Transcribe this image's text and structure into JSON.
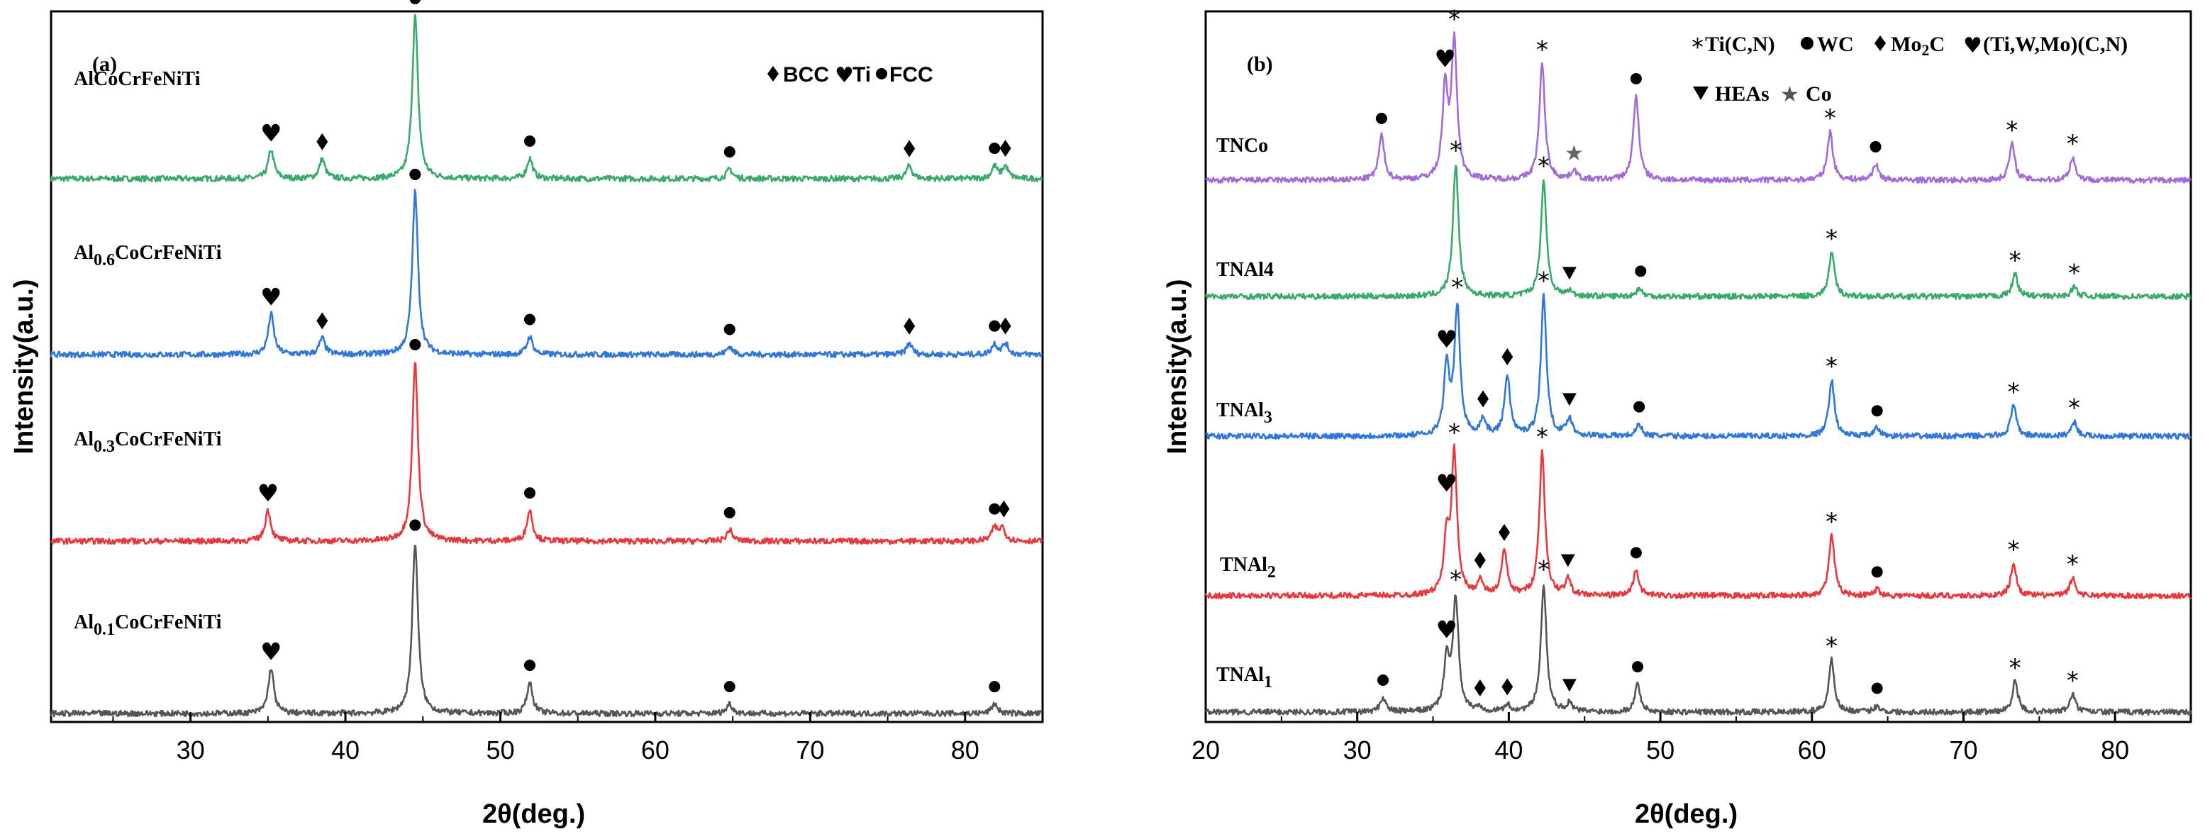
{
  "chart_data": [
    {
      "type": "line",
      "panel_label": "(a)",
      "xlabel": "2θ(deg.)",
      "ylabel": "Intensity(a.u.)",
      "xlim": [
        21,
        85
      ],
      "xticks": [
        30,
        40,
        50,
        60,
        70,
        80
      ],
      "legend": {
        "placement": "top-right",
        "entries": [
          {
            "marker": "diamond",
            "label": "BCC"
          },
          {
            "marker": "heart",
            "label": "Ti"
          },
          {
            "marker": "dot",
            "label": "FCC"
          }
        ]
      },
      "series": [
        {
          "name": "AlCoCrFeNiTi",
          "label_main": "AlCoCrFeNiTi",
          "label_sub": "",
          "label_rest": "",
          "color": "#3aaa6a",
          "peaks": [
            [
              35.2,
              0.35
            ],
            [
              38.5,
              0.24
            ],
            [
              44.5,
              2.0
            ],
            [
              51.9,
              0.25
            ],
            [
              64.8,
              0.12
            ],
            [
              76.4,
              0.16
            ],
            [
              81.9,
              0.15
            ],
            [
              82.6,
              0.15
            ]
          ],
          "markers": [
            {
              "x": 35.2,
              "type": "heart"
            },
            {
              "x": 38.5,
              "type": "diamond"
            },
            {
              "x": 44.5,
              "type": "dot"
            },
            {
              "x": 51.9,
              "type": "dot"
            },
            {
              "x": 64.8,
              "type": "dot"
            },
            {
              "x": 76.4,
              "type": "diamond"
            },
            {
              "x": 81.9,
              "type": "dot"
            },
            {
              "x": 82.6,
              "type": "diamond"
            }
          ]
        },
        {
          "name": "Al0.6CoCrFeNiTi",
          "label_main": "Al",
          "label_sub": "0.6",
          "label_rest": "CoCrFeNiTi",
          "color": "#2f78d8",
          "peaks": [
            [
              35.2,
              0.5
            ],
            [
              38.5,
              0.2
            ],
            [
              44.5,
              2.0
            ],
            [
              51.9,
              0.22
            ],
            [
              64.8,
              0.1
            ],
            [
              76.4,
              0.14
            ],
            [
              81.9,
              0.13
            ],
            [
              82.6,
              0.13
            ]
          ],
          "markers": [
            {
              "x": 35.2,
              "type": "heart"
            },
            {
              "x": 38.5,
              "type": "diamond"
            },
            {
              "x": 44.5,
              "type": "dot"
            },
            {
              "x": 51.9,
              "type": "dot"
            },
            {
              "x": 64.8,
              "type": "dot"
            },
            {
              "x": 76.4,
              "type": "diamond"
            },
            {
              "x": 81.9,
              "type": "dot"
            },
            {
              "x": 82.6,
              "type": "diamond"
            }
          ]
        },
        {
          "name": "Al0.3CoCrFeNiTi",
          "label_main": "Al",
          "label_sub": "0.3",
          "label_rest": "CoCrFeNiTi",
          "color": "#e8383d",
          "peaks": [
            [
              35.0,
              0.38
            ],
            [
              44.5,
              2.2
            ],
            [
              51.9,
              0.38
            ],
            [
              64.8,
              0.14
            ],
            [
              81.9,
              0.16
            ],
            [
              82.4,
              0.16
            ]
          ],
          "markers": [
            {
              "x": 35.0,
              "type": "heart"
            },
            {
              "x": 44.5,
              "type": "dot"
            },
            {
              "x": 51.9,
              "type": "dot"
            },
            {
              "x": 64.8,
              "type": "dot"
            },
            {
              "x": 81.9,
              "type": "dot"
            },
            {
              "x": 82.5,
              "type": "diamond"
            }
          ]
        },
        {
          "name": "Al0.1CoCrFeNiTi",
          "label_main": "Al",
          "label_sub": "0.1",
          "label_rest": "CoCrFeNiTi",
          "color": "#555555",
          "peaks": [
            [
              35.2,
              0.55
            ],
            [
              44.5,
              2.1
            ],
            [
              51.9,
              0.38
            ],
            [
              64.8,
              0.12
            ],
            [
              81.9,
              0.12
            ]
          ],
          "markers": [
            {
              "x": 35.2,
              "type": "heart"
            },
            {
              "x": 44.5,
              "type": "dot"
            },
            {
              "x": 51.9,
              "type": "dot"
            },
            {
              "x": 64.8,
              "type": "dot"
            },
            {
              "x": 81.9,
              "type": "dot"
            }
          ]
        }
      ]
    },
    {
      "type": "line",
      "panel_label": "(b)",
      "xlabel": "2θ(deg.)",
      "ylabel": "Intensity(a.u.)",
      "xlim": [
        20,
        85
      ],
      "xticks": [
        20,
        30,
        40,
        50,
        60,
        70,
        80
      ],
      "legend": {
        "placement": "top-right",
        "row1": [
          {
            "marker": "asterisk",
            "label": "Ti(C,N)"
          },
          {
            "marker": "dot",
            "label": "WC"
          },
          {
            "marker": "diamond",
            "label": "Mo2C",
            "label_main": "Mo",
            "label_sub": "2",
            "label_rest": "C"
          },
          {
            "marker": "heart",
            "label": "(Ti,W,Mo)(C,N)"
          }
        ],
        "row2": [
          {
            "marker": "triangle",
            "label": "HEAs"
          },
          {
            "marker": "grey-star",
            "label": "Co"
          }
        ]
      },
      "series": [
        {
          "name": "TNCo",
          "label_main": "TNCo",
          "label_sub": "",
          "label_rest": "",
          "color": "#a36bd8",
          "peaks": [
            [
              31.6,
              0.55
            ],
            [
              35.8,
              1.1
            ],
            [
              36.4,
              1.7
            ],
            [
              42.2,
              1.45
            ],
            [
              44.3,
              0.12
            ],
            [
              48.4,
              1.05
            ],
            [
              61.2,
              0.6
            ],
            [
              64.2,
              0.2
            ],
            [
              73.2,
              0.45
            ],
            [
              77.2,
              0.28
            ]
          ],
          "markers": [
            {
              "x": 31.6,
              "type": "dot"
            },
            {
              "x": 35.8,
              "type": "heart"
            },
            {
              "x": 36.4,
              "type": "asterisk"
            },
            {
              "x": 42.2,
              "type": "asterisk"
            },
            {
              "x": 44.3,
              "type": "grey-star"
            },
            {
              "x": 48.4,
              "type": "dot"
            },
            {
              "x": 61.2,
              "type": "asterisk"
            },
            {
              "x": 64.2,
              "type": "dot"
            },
            {
              "x": 73.2,
              "type": "asterisk"
            },
            {
              "x": 77.2,
              "type": "asterisk"
            }
          ]
        },
        {
          "name": "TNAl4",
          "label_main": "TNAl4",
          "label_sub": "",
          "label_rest": "",
          "color": "#3aaa6a",
          "peaks": [
            [
              36.5,
              1.65
            ],
            [
              42.3,
              1.45
            ],
            [
              44.0,
              0.06
            ],
            [
              48.6,
              0.1
            ],
            [
              61.3,
              0.55
            ],
            [
              73.4,
              0.28
            ],
            [
              77.3,
              0.12
            ]
          ],
          "markers": [
            {
              "x": 36.5,
              "type": "asterisk"
            },
            {
              "x": 42.3,
              "type": "asterisk"
            },
            {
              "x": 44.0,
              "type": "triangle"
            },
            {
              "x": 48.7,
              "type": "dot"
            },
            {
              "x": 61.3,
              "type": "asterisk"
            },
            {
              "x": 73.4,
              "type": "asterisk"
            },
            {
              "x": 77.3,
              "type": "asterisk"
            }
          ]
        },
        {
          "name": "TNAl3",
          "label_main": "TNAl",
          "label_sub": "3",
          "label_rest": "",
          "color": "#2f78d8",
          "peaks": [
            [
              35.9,
              0.85
            ],
            [
              36.6,
              1.6
            ],
            [
              38.3,
              0.2
            ],
            [
              39.9,
              0.75
            ],
            [
              42.3,
              1.75
            ],
            [
              44.0,
              0.22
            ],
            [
              48.6,
              0.15
            ],
            [
              61.3,
              0.7
            ],
            [
              64.3,
              0.1
            ],
            [
              73.3,
              0.38
            ],
            [
              77.3,
              0.18
            ]
          ],
          "markers": [
            {
              "x": 35.9,
              "type": "heart"
            },
            {
              "x": 36.6,
              "type": "asterisk"
            },
            {
              "x": 38.3,
              "type": "diamond"
            },
            {
              "x": 39.9,
              "type": "diamond"
            },
            {
              "x": 42.3,
              "type": "asterisk"
            },
            {
              "x": 44.0,
              "type": "triangle"
            },
            {
              "x": 48.6,
              "type": "dot"
            },
            {
              "x": 61.3,
              "type": "asterisk"
            },
            {
              "x": 64.3,
              "type": "dot"
            },
            {
              "x": 73.3,
              "type": "asterisk"
            },
            {
              "x": 77.3,
              "type": "asterisk"
            }
          ]
        },
        {
          "name": "TNAl2",
          "label_main": "TNAl",
          "label_sub": "2",
          "label_rest": "",
          "color": "#e8383d",
          "peaks": [
            [
              35.9,
              0.65
            ],
            [
              36.4,
              1.75
            ],
            [
              38.1,
              0.18
            ],
            [
              39.7,
              0.55
            ],
            [
              42.2,
              1.8
            ],
            [
              43.9,
              0.2
            ],
            [
              48.4,
              0.32
            ],
            [
              61.3,
              0.75
            ],
            [
              64.3,
              0.08
            ],
            [
              73.3,
              0.4
            ],
            [
              77.2,
              0.22
            ]
          ],
          "markers": [
            {
              "x": 35.9,
              "type": "heart"
            },
            {
              "x": 36.4,
              "type": "asterisk"
            },
            {
              "x": 38.1,
              "type": "diamond"
            },
            {
              "x": 39.7,
              "type": "diamond"
            },
            {
              "x": 42.2,
              "type": "asterisk"
            },
            {
              "x": 43.9,
              "type": "triangle"
            },
            {
              "x": 48.4,
              "type": "dot"
            },
            {
              "x": 61.3,
              "type": "asterisk"
            },
            {
              "x": 64.3,
              "type": "dot"
            },
            {
              "x": 73.3,
              "type": "asterisk"
            },
            {
              "x": 77.2,
              "type": "asterisk"
            }
          ]
        },
        {
          "name": "TNAl1",
          "label_main": "TNAl",
          "label_sub": "1",
          "label_rest": "",
          "color": "#555555",
          "peaks": [
            [
              31.7,
              0.18
            ],
            [
              35.9,
              0.65
            ],
            [
              36.5,
              1.4
            ],
            [
              38.1,
              0.05
            ],
            [
              39.9,
              0.08
            ],
            [
              42.3,
              1.6
            ],
            [
              44.0,
              0.1
            ],
            [
              48.5,
              0.35
            ],
            [
              61.3,
              0.65
            ],
            [
              64.3,
              0.08
            ],
            [
              73.4,
              0.38
            ],
            [
              77.2,
              0.22
            ]
          ],
          "markers": [
            {
              "x": 31.7,
              "type": "dot"
            },
            {
              "x": 35.9,
              "type": "heart"
            },
            {
              "x": 36.5,
              "type": "asterisk"
            },
            {
              "x": 38.1,
              "type": "diamond"
            },
            {
              "x": 39.9,
              "type": "diamond"
            },
            {
              "x": 42.3,
              "type": "asterisk"
            },
            {
              "x": 44.0,
              "type": "triangle"
            },
            {
              "x": 48.5,
              "type": "dot"
            },
            {
              "x": 61.3,
              "type": "asterisk"
            },
            {
              "x": 64.3,
              "type": "dot"
            },
            {
              "x": 73.4,
              "type": "asterisk"
            },
            {
              "x": 77.2,
              "type": "asterisk"
            }
          ]
        }
      ]
    }
  ]
}
